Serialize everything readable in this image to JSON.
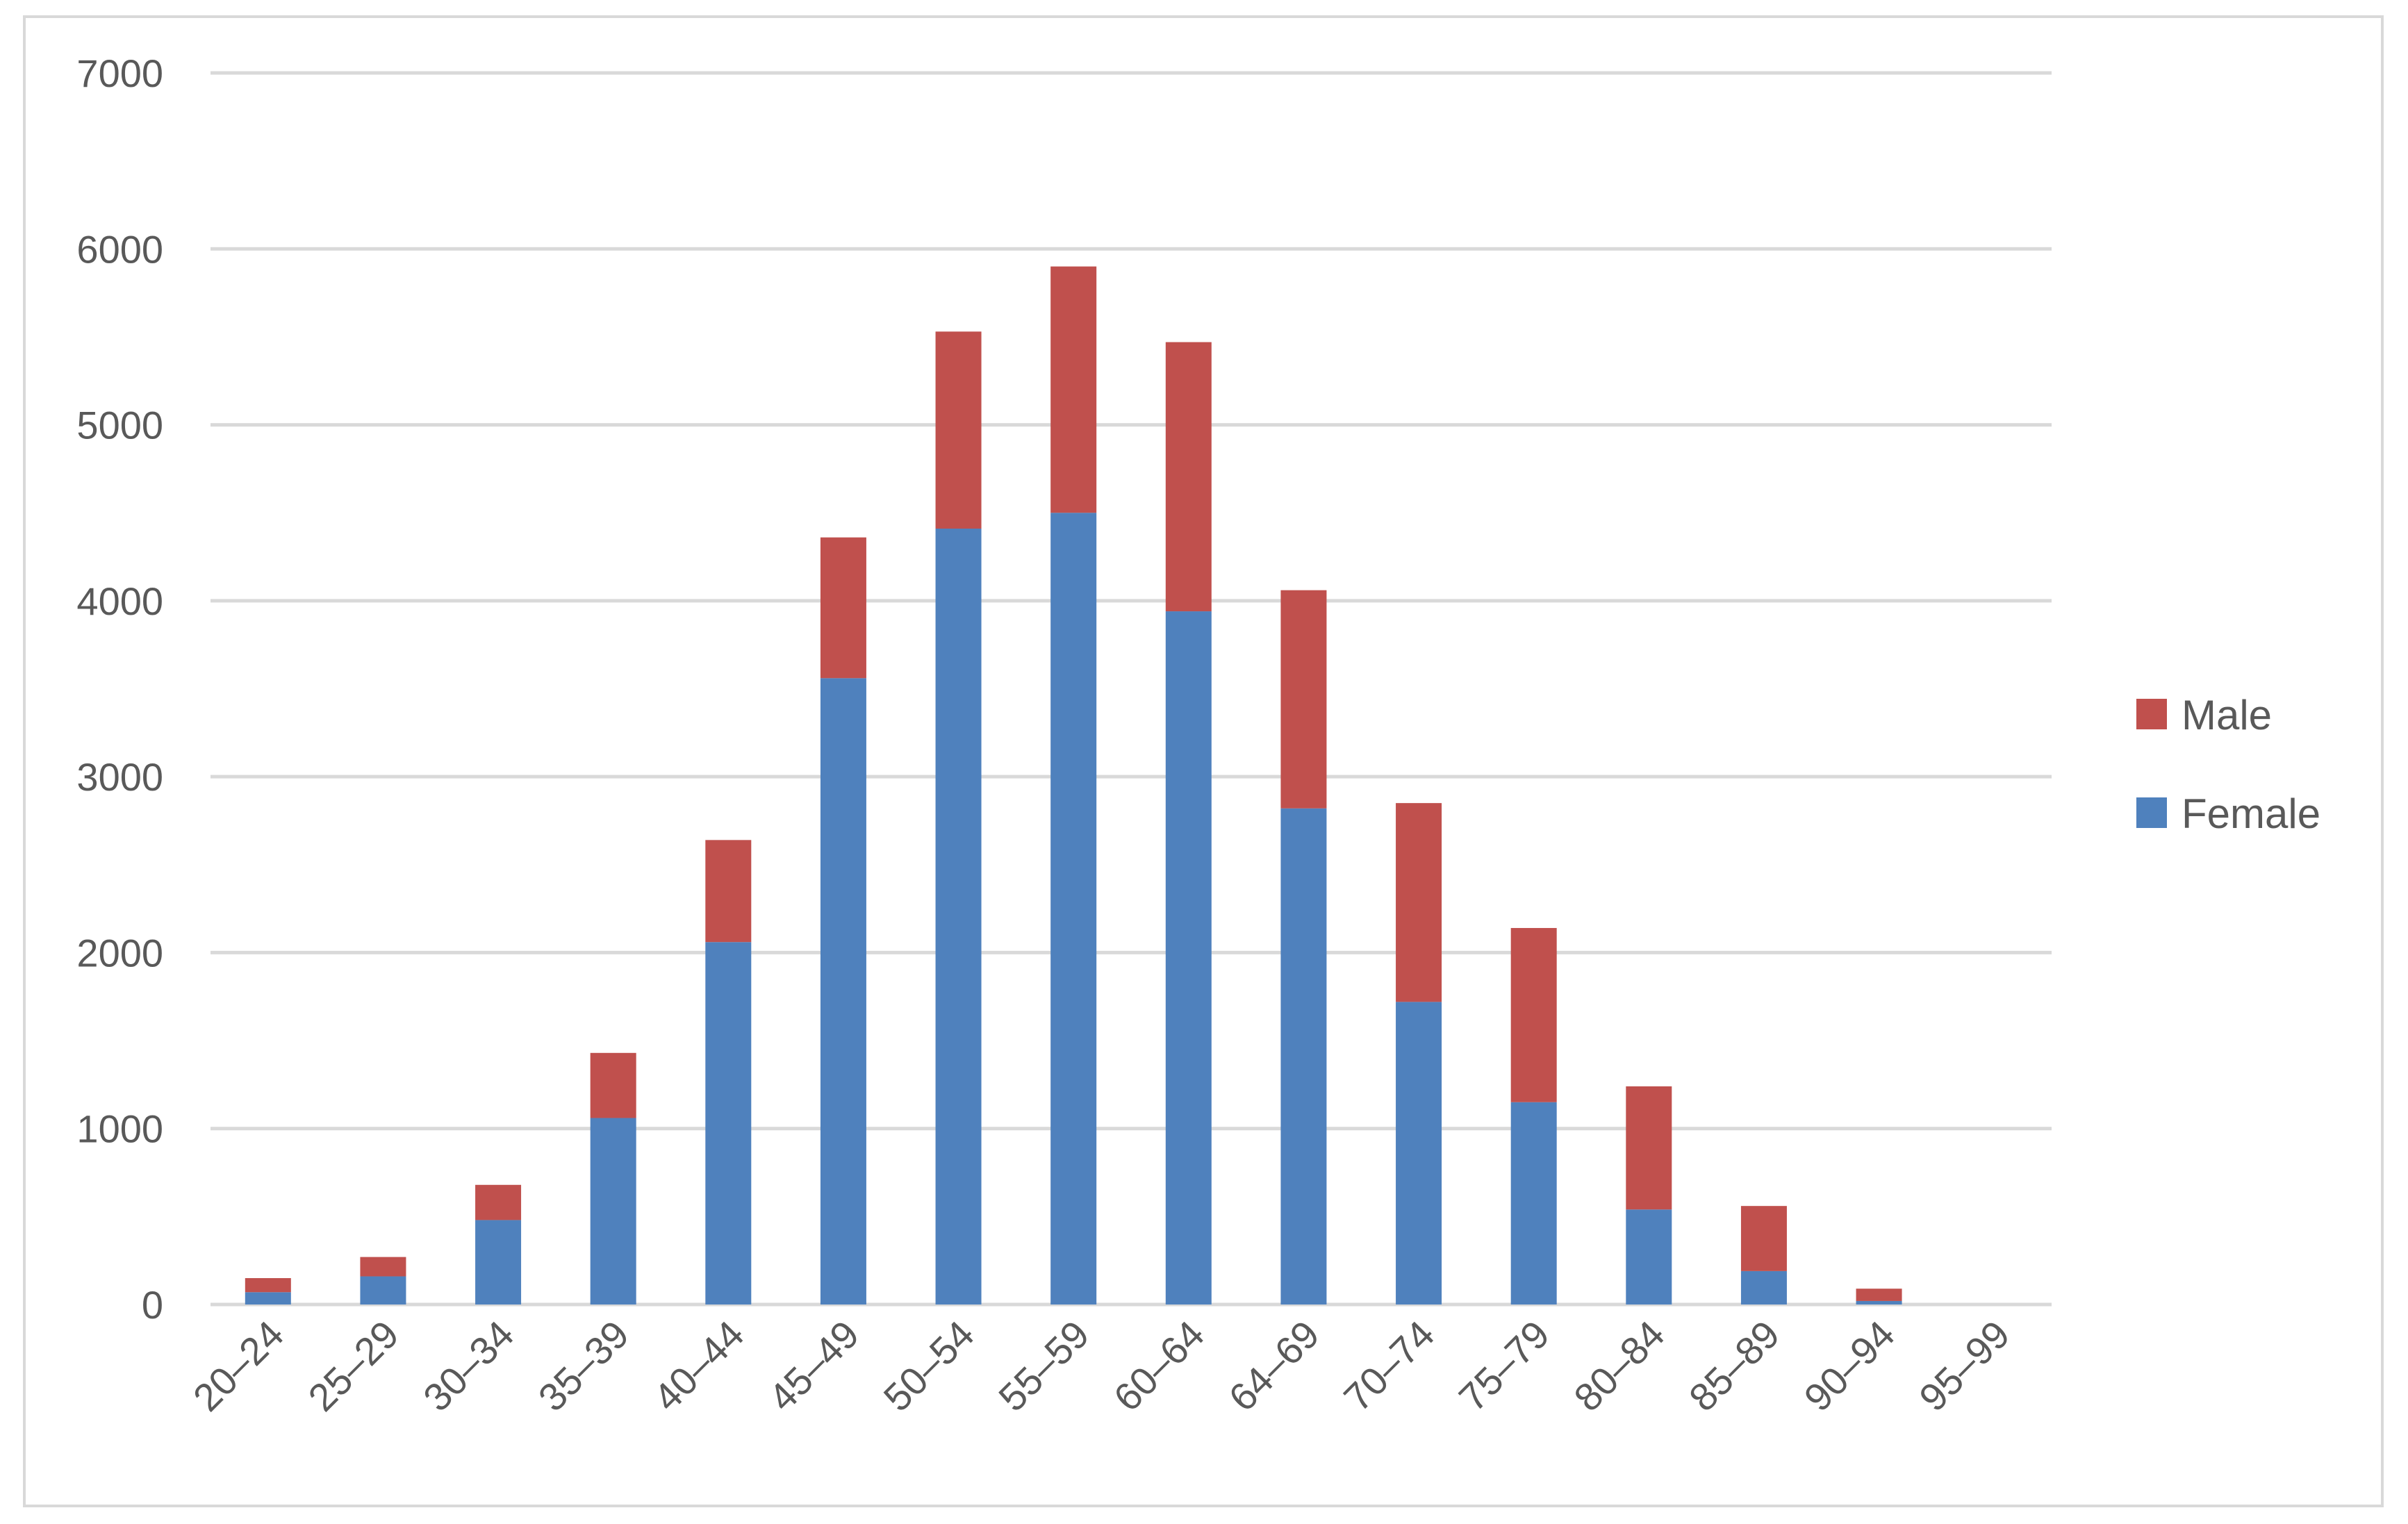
{
  "chart_data": {
    "type": "bar",
    "stacked": true,
    "title": "",
    "xlabel": "",
    "ylabel": "",
    "ylim": [
      0,
      7000
    ],
    "yticks": [
      0,
      1000,
      2000,
      3000,
      4000,
      5000,
      6000,
      7000
    ],
    "grid": true,
    "legend_position": "right",
    "categories": [
      "20–24",
      "25–29",
      "30–34",
      "35–39",
      "40–44",
      "45–49",
      "50–54",
      "55–59",
      "60–64",
      "64–69",
      "70–74",
      "75–79",
      "80–84",
      "85–89",
      "90–94",
      "95–99"
    ],
    "series": [
      {
        "name": "Female",
        "color": "#4f81bd",
        "values": [
          70,
          160,
          480,
          1060,
          2060,
          3560,
          4410,
          4500,
          3940,
          2820,
          1720,
          1150,
          540,
          190,
          20,
          0
        ]
      },
      {
        "name": "Male",
        "color": "#c0504d",
        "values": [
          80,
          110,
          200,
          370,
          580,
          800,
          1120,
          1400,
          1530,
          1240,
          1130,
          990,
          700,
          370,
          70,
          0
        ]
      }
    ],
    "legend": [
      {
        "label": "Male",
        "color": "#c0504d"
      },
      {
        "label": "Female",
        "color": "#4f81bd"
      }
    ]
  }
}
